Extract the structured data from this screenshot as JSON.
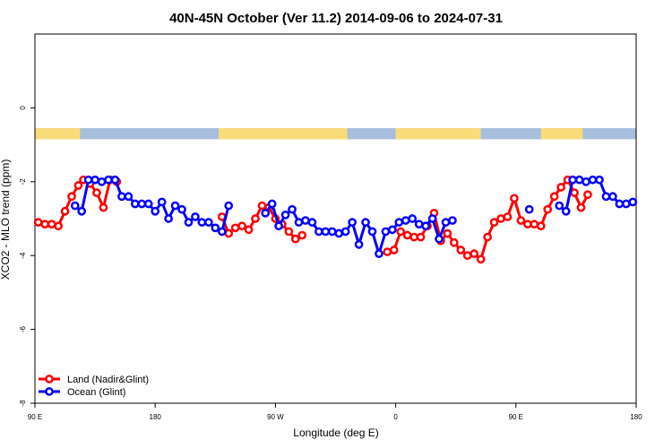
{
  "chart_data": {
    "type": "line",
    "title": "40N-45N October (Ver 11.2)   2014-09-06 to 2024-07-31",
    "xlabel": "Longitude (deg E)",
    "ylabel": "XCO2 - MLO trend (ppm)",
    "xlim": [
      90,
      450
    ],
    "ylim": [
      -8,
      2
    ],
    "x_ticks": [
      {
        "value": 90,
        "label": "90 E"
      },
      {
        "value": 162,
        "label": "180"
      },
      {
        "value": 234,
        "label": "90 W"
      },
      {
        "value": 306,
        "label": "0"
      },
      {
        "value": 378,
        "label": "90 E"
      },
      {
        "value": 450,
        "label": "180"
      }
    ],
    "y_ticks": [
      0,
      -2,
      -4,
      -6,
      -8
    ],
    "grid": false,
    "legend_position": "bottom-left",
    "landmask_band": {
      "y_top": -0.55,
      "y_bottom": -0.85,
      "land_color": "#fbdc7a",
      "ocean_color": "#a7bedc",
      "land_segments": [
        [
          90,
          117
        ],
        [
          200,
          277
        ],
        [
          306,
          357
        ],
        [
          393,
          418
        ]
      ]
    },
    "series": [
      {
        "name": "Land (Nadir&Glint)",
        "color": "#ff0000",
        "segments": [
          [
            [
              92,
              -3.1
            ],
            [
              96,
              -3.15
            ],
            [
              100,
              -3.15
            ],
            [
              104,
              -3.2
            ],
            [
              108,
              -2.8
            ],
            [
              112,
              -2.4
            ],
            [
              116,
              -2.1
            ],
            [
              119,
              -1.95
            ],
            [
              123,
              -2.05
            ],
            [
              127,
              -2.3
            ],
            [
              131,
              -2.7
            ],
            [
              135,
              -1.95
            ],
            [
              139,
              -2.0
            ]
          ],
          [
            [
              202,
              -2.95
            ],
            [
              206,
              -3.4
            ],
            [
              210,
              -3.25
            ],
            [
              214,
              -3.2
            ],
            [
              218,
              -3.3
            ],
            [
              222,
              -3.0
            ],
            [
              226,
              -2.65
            ],
            [
              230,
              -2.7
            ],
            [
              234,
              -3.0
            ],
            [
              238,
              -3.15
            ],
            [
              242,
              -3.35
            ],
            [
              246,
              -3.55
            ],
            [
              250,
              -3.45
            ]
          ],
          [
            [
              301,
              -3.9
            ],
            [
              305,
              -3.85
            ],
            [
              309,
              -3.35
            ],
            [
              313,
              -3.45
            ],
            [
              317,
              -3.5
            ],
            [
              321,
              -3.5
            ],
            [
              325,
              -3.2
            ],
            [
              329,
              -2.85
            ],
            [
              333,
              -3.6
            ],
            [
              337,
              -3.4
            ],
            [
              341,
              -3.65
            ],
            [
              345,
              -3.85
            ],
            [
              349,
              -4.0
            ],
            [
              353,
              -3.95
            ],
            [
              357,
              -4.1
            ],
            [
              361,
              -3.5
            ],
            [
              365,
              -3.1
            ],
            [
              369,
              -3.0
            ],
            [
              373,
              -2.95
            ],
            [
              377,
              -2.45
            ],
            [
              381,
              -3.05
            ],
            [
              385,
              -3.15
            ],
            [
              389,
              -3.15
            ],
            [
              393,
              -3.2
            ],
            [
              397,
              -2.75
            ],
            [
              401,
              -2.4
            ],
            [
              405,
              -2.15
            ],
            [
              409,
              -1.95
            ],
            [
              413,
              -2.3
            ],
            [
              417,
              -2.7
            ],
            [
              421,
              -2.35
            ]
          ]
        ]
      },
      {
        "name": "Ocean (Glint)",
        "color": "#0000ff",
        "segments": [
          [
            [
              114,
              -2.65
            ],
            [
              118,
              -2.8
            ],
            [
              122,
              -1.95
            ],
            [
              126,
              -1.95
            ],
            [
              130,
              -2.0
            ],
            [
              134,
              -1.95
            ],
            [
              138,
              -1.95
            ],
            [
              142,
              -2.4
            ],
            [
              146,
              -2.4
            ],
            [
              150,
              -2.6
            ],
            [
              154,
              -2.6
            ],
            [
              158,
              -2.6
            ],
            [
              162,
              -2.8
            ],
            [
              166,
              -2.55
            ],
            [
              170,
              -3.0
            ],
            [
              174,
              -2.65
            ],
            [
              178,
              -2.75
            ],
            [
              182,
              -3.1
            ],
            [
              186,
              -2.95
            ],
            [
              190,
              -3.1
            ],
            [
              194,
              -3.1
            ],
            [
              198,
              -3.25
            ],
            [
              202,
              -3.35
            ],
            [
              206,
              -2.65
            ]
          ],
          [
            [
              228,
              -2.85
            ],
            [
              232,
              -2.6
            ],
            [
              236,
              -3.2
            ],
            [
              240,
              -2.9
            ],
            [
              244,
              -2.75
            ],
            [
              248,
              -3.1
            ],
            [
              252,
              -3.05
            ],
            [
              256,
              -3.1
            ],
            [
              260,
              -3.35
            ],
            [
              264,
              -3.35
            ],
            [
              268,
              -3.35
            ],
            [
              272,
              -3.4
            ],
            [
              276,
              -3.35
            ],
            [
              280,
              -3.1
            ],
            [
              284,
              -3.7
            ],
            [
              288,
              -3.1
            ],
            [
              292,
              -3.35
            ],
            [
              296,
              -3.95
            ],
            [
              300,
              -3.35
            ],
            [
              304,
              -3.3
            ],
            [
              308,
              -3.1
            ],
            [
              312,
              -3.05
            ],
            [
              316,
              -3.0
            ],
            [
              320,
              -3.15
            ],
            [
              324,
              -3.2
            ],
            [
              328,
              -3.0
            ],
            [
              332,
              -3.55
            ],
            [
              336,
              -3.1
            ],
            [
              340,
              -3.05
            ]
          ],
          [
            [
              386,
              -2.75
            ]
          ],
          [
            [
              404,
              -2.65
            ],
            [
              408,
              -2.8
            ],
            [
              412,
              -1.95
            ],
            [
              416,
              -1.95
            ],
            [
              420,
              -2.0
            ],
            [
              424,
              -1.95
            ],
            [
              428,
              -1.95
            ],
            [
              432,
              -2.4
            ],
            [
              436,
              -2.4
            ],
            [
              440,
              -2.6
            ],
            [
              444,
              -2.6
            ],
            [
              448,
              -2.55
            ]
          ]
        ]
      }
    ]
  }
}
